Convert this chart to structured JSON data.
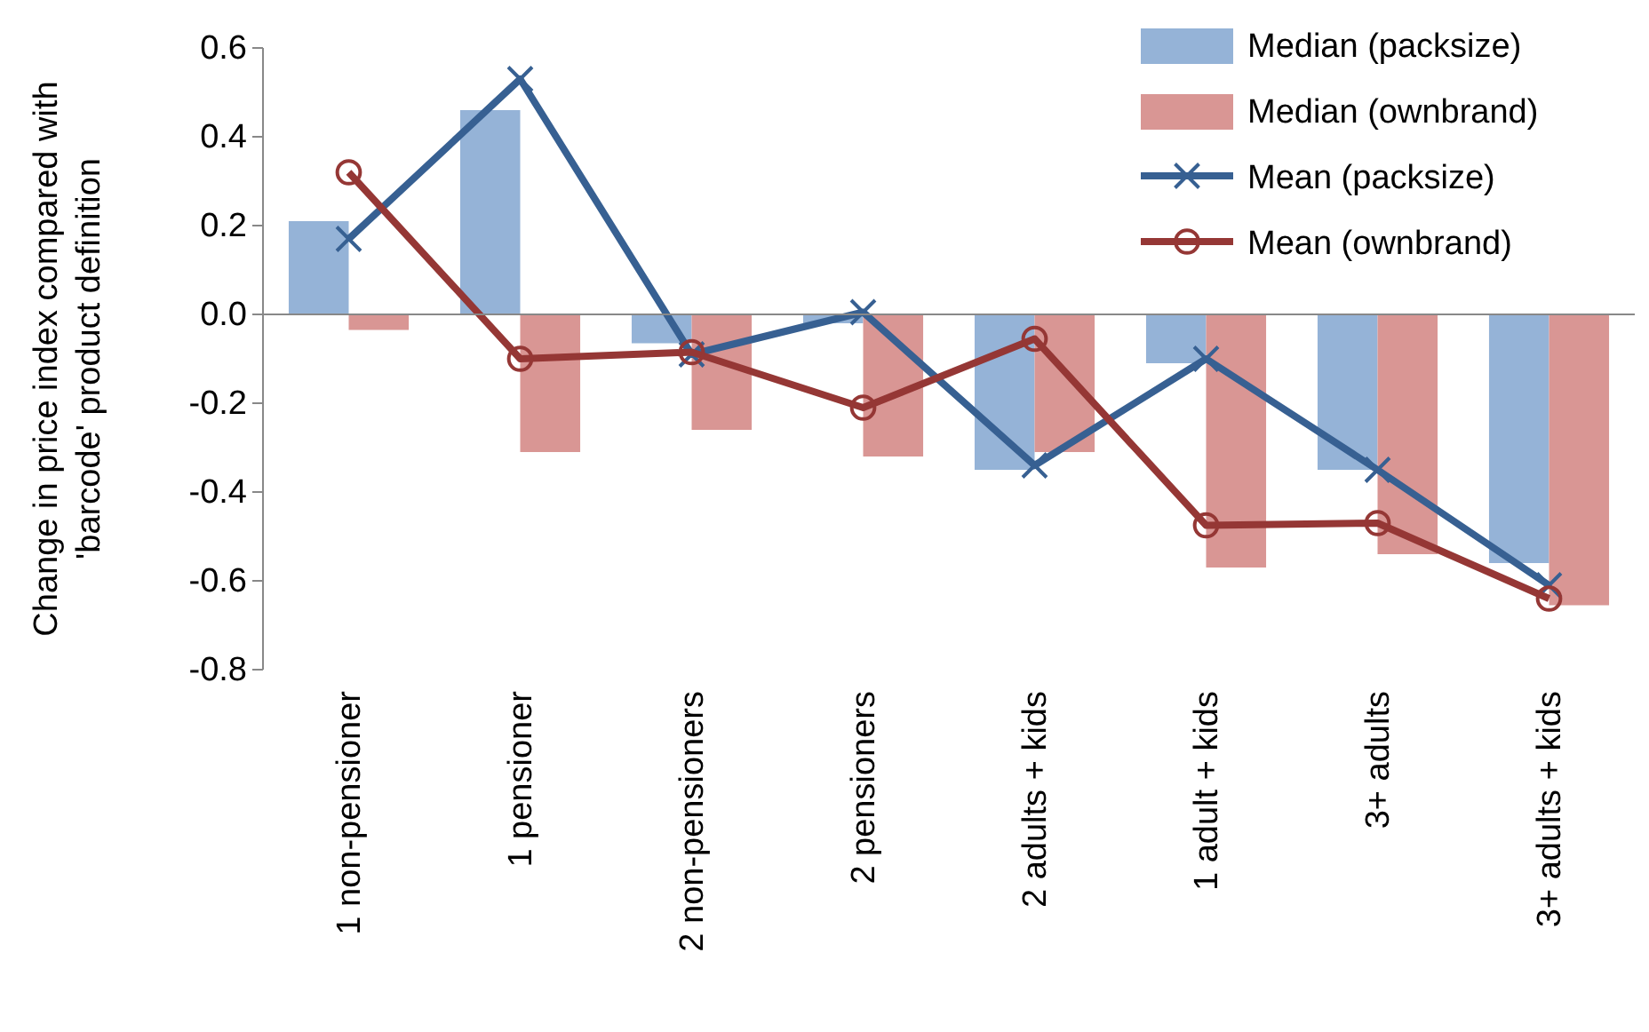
{
  "chart_data": {
    "type": "bar",
    "ylabel": "Change in price index compared with 'barcode' product definition",
    "categories": [
      "1 non-pensioner",
      "1 pensioner",
      "2 non-pensioners",
      "2 pensioners",
      "2 adults + kids",
      "1 adult + kids",
      "3+ adults",
      "3+ adults + kids"
    ],
    "series": [
      {
        "name": "Median (packsize)",
        "color": "#95b3d7",
        "values": [
          0.21,
          0.46,
          -0.065,
          -0.02,
          -0.35,
          -0.11,
          -0.35,
          -0.56
        ]
      },
      {
        "name": "Median (ownbrand)",
        "color": "#d99694",
        "values": [
          -0.035,
          -0.31,
          -0.26,
          -0.32,
          -0.31,
          -0.57,
          -0.54,
          -0.655
        ]
      },
      {
        "name": "Mean (packsize)",
        "type": "line",
        "color": "#376092",
        "marker": "cross",
        "values": [
          0.17,
          0.53,
          -0.09,
          0.005,
          -0.34,
          -0.1,
          -0.35,
          -0.61
        ]
      },
      {
        "name": "Mean (ownbrand)",
        "type": "line",
        "color": "#953735",
        "marker": "circle",
        "values": [
          0.32,
          -0.1,
          -0.085,
          -0.21,
          -0.055,
          -0.475,
          -0.47,
          -0.64
        ]
      }
    ],
    "ylim": [
      -0.8,
      0.6
    ],
    "yticks": [
      {
        "value": -0.8,
        "label": "-0.8"
      },
      {
        "value": -0.6,
        "label": "-0.6"
      },
      {
        "value": -0.4,
        "label": "-0.4"
      },
      {
        "value": -0.2,
        "label": "-0.2"
      },
      {
        "value": 0,
        "label": "0.0"
      },
      {
        "value": 0.2,
        "label": "0.2"
      },
      {
        "value": 0.4,
        "label": "0.4"
      },
      {
        "value": 0.6,
        "label": "0.6"
      }
    ],
    "legend": "top right"
  }
}
